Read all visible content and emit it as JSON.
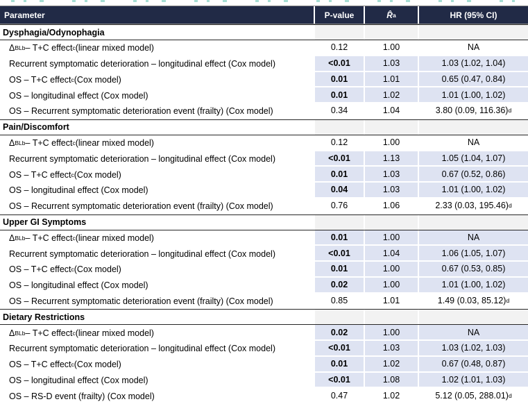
{
  "decor": {
    "clipped_title_note": "bottom tips of a cut-off teal title line",
    "clipped_title_color": "#5fc4b0"
  },
  "table": {
    "colors": {
      "header_bg": "#212a46",
      "header_text": "#ffffff",
      "significant_highlight": "#dee3f2",
      "section_row_bg": "#f2f2f2",
      "section_rule": "#262626"
    },
    "columns": {
      "parameter": "Parameter",
      "p_value": "P-value",
      "r_hat_html": "<i>R̂</i><sup>a</sup>",
      "hr": "HR (95% CI)"
    },
    "sections": [
      {
        "title": "Dysphagia/Odynophagia",
        "rows": [
          {
            "parameter_html": "Δ<sub>BL</sub><sup>b</sup> – T+C effect<sup>c</sup> (linear mixed model)",
            "p_value": "0.12",
            "r_hat": "1.00",
            "hr_html": "NA",
            "significant": false
          },
          {
            "parameter_html": "Recurrent symptomatic deterioration – longitudinal effect (Cox model)",
            "p_value": "<0.01",
            "r_hat": "1.03",
            "hr_html": "1.03 (1.02, 1.04)",
            "significant": true
          },
          {
            "parameter_html": "OS – T+C effect<sup>c</sup> (Cox model)",
            "p_value": "0.01",
            "r_hat": "1.01",
            "hr_html": "0.65 (0.47, 0.84)",
            "significant": true
          },
          {
            "parameter_html": "OS – longitudinal effect (Cox model)",
            "p_value": "0.01",
            "r_hat": "1.02",
            "hr_html": "1.01 (1.00, 1.02)",
            "significant": true
          },
          {
            "parameter_html": "OS – Recurrent symptomatic deterioration event (frailty) (Cox model)",
            "p_value": "0.34",
            "r_hat": "1.04",
            "hr_html": "3.80 (0.09, 116.36)<sup>d</sup>",
            "significant": false
          }
        ]
      },
      {
        "title": "Pain/Discomfort",
        "rows": [
          {
            "parameter_html": "Δ<sub>BL</sub><sup>b</sup> – T+C effect<sup>c</sup> (linear mixed model)",
            "p_value": "0.12",
            "r_hat": "1.00",
            "hr_html": "NA",
            "significant": false
          },
          {
            "parameter_html": "Recurrent symptomatic deterioration – longitudinal effect (Cox model)",
            "p_value": "<0.01",
            "r_hat": "1.13",
            "hr_html": "1.05 (1.04, 1.07)",
            "significant": true
          },
          {
            "parameter_html": "OS – T+C effect<sup>c</sup> (Cox model)",
            "p_value": "0.01",
            "r_hat": "1.03",
            "hr_html": "0.67 (0.52, 0.86)",
            "significant": true
          },
          {
            "parameter_html": "OS – longitudinal effect (Cox model)",
            "p_value": "0.04",
            "r_hat": "1.03",
            "hr_html": "1.01 (1.00, 1.02)",
            "significant": true
          },
          {
            "parameter_html": "OS – Recurrent symptomatic deterioration event (frailty) (Cox model)",
            "p_value": "0.76",
            "r_hat": "1.06",
            "hr_html": "2.33 (0.03, 195.46)<sup>d</sup>",
            "significant": false
          }
        ]
      },
      {
        "title": "Upper GI Symptoms",
        "rows": [
          {
            "parameter_html": "Δ<sub>BL</sub><sup>b</sup> – T+C effect<sup>c</sup> (linear mixed model)",
            "p_value": "0.01",
            "r_hat": "1.00",
            "hr_html": "NA",
            "significant": true
          },
          {
            "parameter_html": "Recurrent symptomatic deterioration – longitudinal effect (Cox model)",
            "p_value": "<0.01",
            "r_hat": "1.04",
            "hr_html": "1.06 (1.05, 1.07)",
            "significant": true
          },
          {
            "parameter_html": "OS – T+C effect<sup>c</sup> (Cox model)",
            "p_value": "0.01",
            "r_hat": "1.00",
            "hr_html": "0.67 (0.53, 0.85)",
            "significant": true
          },
          {
            "parameter_html": "OS – longitudinal effect (Cox model)",
            "p_value": "0.02",
            "r_hat": "1.00",
            "hr_html": "1.01 (1.00, 1.02)",
            "significant": true
          },
          {
            "parameter_html": "OS – Recurrent symptomatic deterioration event (frailty) (Cox model)",
            "p_value": "0.85",
            "r_hat": "1.01",
            "hr_html": "1.49 (0.03, 85.12)<sup>d</sup>",
            "significant": false
          }
        ]
      },
      {
        "title": "Dietary Restrictions",
        "rows": [
          {
            "parameter_html": "Δ<sub>BL</sub><sup>b</sup> – T+C effect<sup>c</sup> (linear mixed model)",
            "p_value": "0.02",
            "r_hat": "1.00",
            "hr_html": "NA",
            "significant": true
          },
          {
            "parameter_html": "Recurrent symptomatic deterioration – longitudinal effect (Cox model)",
            "p_value": "<0.01",
            "r_hat": "1.03",
            "hr_html": "1.03 (1.02, 1.03)",
            "significant": true
          },
          {
            "parameter_html": "OS – T+C effect<sup>c</sup> (Cox model)",
            "p_value": "0.01",
            "r_hat": "1.02",
            "hr_html": "0.67 (0.48, 0.87)",
            "significant": true
          },
          {
            "parameter_html": "OS – longitudinal effect (Cox model)",
            "p_value": "<0.01",
            "r_hat": "1.08",
            "hr_html": "1.02 (1.01, 1.03)",
            "significant": true
          },
          {
            "parameter_html": "OS – RS-D event (frailty) (Cox model)",
            "p_value": "0.47",
            "r_hat": "1.02",
            "hr_html": "5.12 (0.05, 288.01)<sup>d</sup>",
            "significant": false
          }
        ]
      }
    ]
  }
}
